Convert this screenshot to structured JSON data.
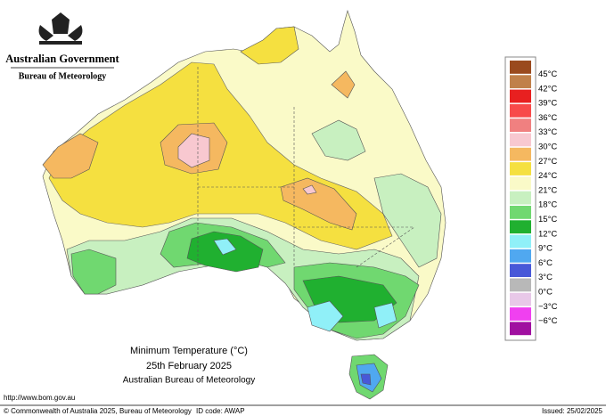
{
  "header": {
    "government": "Australian Government",
    "agency": "Bureau of Meteorology"
  },
  "title": {
    "line1": "Minimum Temperature (°C)",
    "line2": "25th February 2025",
    "line3": "Australian Bureau of Meteorology"
  },
  "legend": {
    "labels": [
      "45°C",
      "42°C",
      "39°C",
      "36°C",
      "33°C",
      "30°C",
      "27°C",
      "24°C",
      "21°C",
      "18°C",
      "15°C",
      "12°C",
      "9°C",
      "6°C",
      "3°C",
      "0°C",
      "−3°C",
      "−6°C"
    ],
    "colors": [
      "#9a4a1e",
      "#c0804a",
      "#e82020",
      "#f84a4a",
      "#f08080",
      "#f8c8d0",
      "#f5b860",
      "#f5e040",
      "#fafac8",
      "#c8f0c0",
      "#70d870",
      "#20b030",
      "#90f0f8",
      "#50a8f0",
      "#4858d8",
      "#b8b8b8",
      "#e8c8e8",
      "#f040f0",
      "#a010a0"
    ]
  },
  "footer": {
    "url": "http://www.bom.gov.au",
    "copyright": "© Commonwealth of Australia 2025, Bureau of Meteorology",
    "id": "ID code: AWAP",
    "issued": "Issued: 25/02/2025"
  }
}
